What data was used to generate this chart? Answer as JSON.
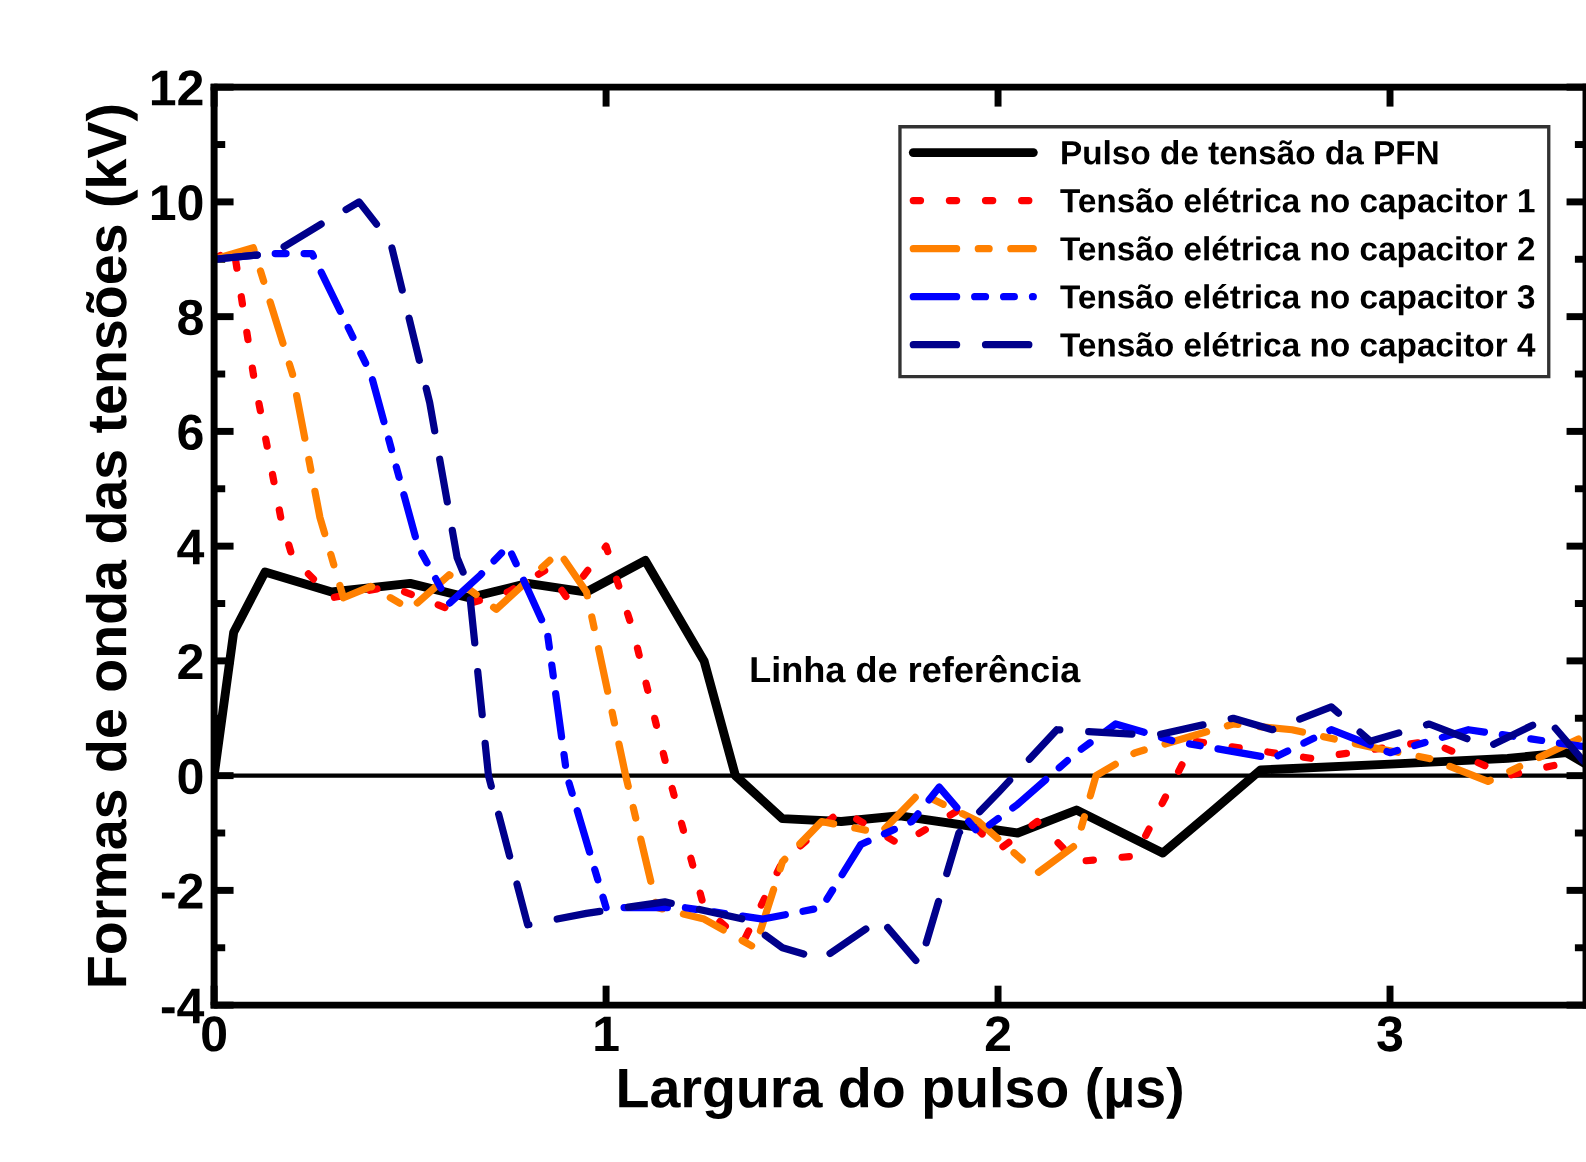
{
  "chart_data": {
    "type": "line",
    "xlabel": "Largura do pulso (µs)",
    "ylabel": "Formas de onda das tensões (kV)",
    "xlim": [
      0,
      3.5
    ],
    "ylim": [
      -4,
      12
    ],
    "xticks": [
      0,
      1,
      2,
      3
    ],
    "yticks": [
      -4,
      -2,
      0,
      2,
      4,
      6,
      8,
      10,
      12
    ],
    "grid": false,
    "legend": "top right",
    "ref_lines": [
      {
        "axis": "y",
        "value": 0,
        "label": "Linha de referência",
        "color": "#000000",
        "line_style": "solid"
      }
    ],
    "series": [
      {
        "name": "Pulso de tensão da PFN",
        "color": "#000000",
        "line_style": "solid",
        "x": [
          0,
          0.05,
          0.13,
          0.3,
          0.5,
          0.65,
          0.8,
          0.95,
          1.1,
          1.25,
          1.33,
          1.45,
          1.6,
          1.75,
          2.05,
          2.2,
          2.42,
          2.55,
          2.67,
          3.0,
          3.3,
          3.45,
          3.5
        ],
        "values": [
          0,
          2.5,
          3.55,
          3.2,
          3.35,
          3.1,
          3.35,
          3.2,
          3.75,
          2,
          0,
          -0.75,
          -0.8,
          -0.7,
          -1.0,
          -0.6,
          -1.35,
          -0.6,
          0.1,
          0.2,
          0.3,
          0.4,
          0.2
        ]
      },
      {
        "name": "Tensão elétrica no capacitor 1",
        "color": "#ff0000",
        "line_style": "dotted",
        "x": [
          0,
          0.05,
          0.1,
          0.17,
          0.2,
          0.3,
          0.45,
          0.6,
          0.75,
          0.85,
          0.9,
          1.0,
          1.07,
          1.16,
          1.25,
          1.35,
          1.45,
          1.6,
          1.75,
          1.9,
          2.0,
          2.1,
          2.2,
          2.35,
          2.5,
          2.8,
          3.1,
          3.3,
          3.5
        ],
        "values": [
          9,
          9.2,
          7,
          4.5,
          3.8,
          3.1,
          3.3,
          2.9,
          3.2,
          3.6,
          3.1,
          4.0,
          2.5,
          0,
          -2.3,
          -2.9,
          -1.5,
          -0.6,
          -1.2,
          -0.6,
          -1.3,
          -0.8,
          -1.5,
          -1.4,
          0.6,
          0.3,
          0.6,
          0,
          0.3
        ]
      },
      {
        "name": "Tensão elétrica no capacitor 2",
        "color": "#ff8000",
        "line_style": "dashdot",
        "x": [
          0,
          0.1,
          0.2,
          0.27,
          0.33,
          0.4,
          0.5,
          0.6,
          0.72,
          0.88,
          0.95,
          1.05,
          1.13,
          1.25,
          1.38,
          1.45,
          1.55,
          1.7,
          1.8,
          1.95,
          2.1,
          2.2,
          2.25,
          2.35,
          2.6,
          2.75,
          2.95,
          3.1,
          3.25,
          3.5
        ],
        "values": [
          9,
          9.2,
          7,
          4.5,
          3.1,
          3.3,
          2.9,
          3.5,
          2.9,
          3.9,
          3.2,
          0,
          -2.3,
          -2.5,
          -3.0,
          -1.5,
          -0.8,
          -1.0,
          -0.3,
          -0.8,
          -1.7,
          -1.2,
          0,
          0.4,
          0.9,
          0.8,
          0.5,
          0.3,
          -0.1,
          0.7
        ]
      },
      {
        "name": "Tensão elétrica no capacitor 3",
        "color": "#0000ff",
        "line_style": "dashdotdot",
        "x": [
          0,
          0.15,
          0.25,
          0.4,
          0.52,
          0.6,
          0.68,
          0.75,
          0.85,
          0.9,
          1.0,
          1.2,
          1.4,
          1.55,
          1.65,
          1.78,
          1.85,
          1.95,
          2.05,
          2.2,
          2.3,
          2.45,
          2.7,
          2.85,
          3.0,
          3.2,
          3.5
        ],
        "values": [
          9,
          9.1,
          9.1,
          7,
          4,
          3,
          3.5,
          4,
          2.5,
          0,
          -2.3,
          -2.3,
          -2.5,
          -2.3,
          -1.2,
          -0.8,
          -0.2,
          -1.0,
          -0.5,
          0.4,
          0.9,
          0.6,
          0.3,
          0.8,
          0.4,
          0.8,
          0.5
        ]
      },
      {
        "name": "Tensão elétrica no capacitor 4",
        "color": "#00008b",
        "line_style": "dashed",
        "x": [
          0,
          0.15,
          0.27,
          0.37,
          0.45,
          0.55,
          0.62,
          0.65,
          0.7,
          0.8,
          0.95,
          1.15,
          1.35,
          1.45,
          1.55,
          1.7,
          1.8,
          1.9,
          2.0,
          2.15,
          2.4,
          2.6,
          2.7,
          2.85,
          2.95,
          3.1,
          3.25,
          3.4,
          3.5
        ],
        "values": [
          9,
          9.1,
          9.6,
          10,
          9.3,
          6.5,
          3.8,
          3.3,
          0,
          -2.6,
          -2.4,
          -2.2,
          -2.5,
          -3.0,
          -3.2,
          -2.5,
          -3.3,
          -1,
          -0.3,
          0.8,
          0.7,
          1.0,
          0.8,
          1.2,
          0.6,
          0.9,
          0.5,
          1.0,
          0.2
        ]
      }
    ]
  }
}
